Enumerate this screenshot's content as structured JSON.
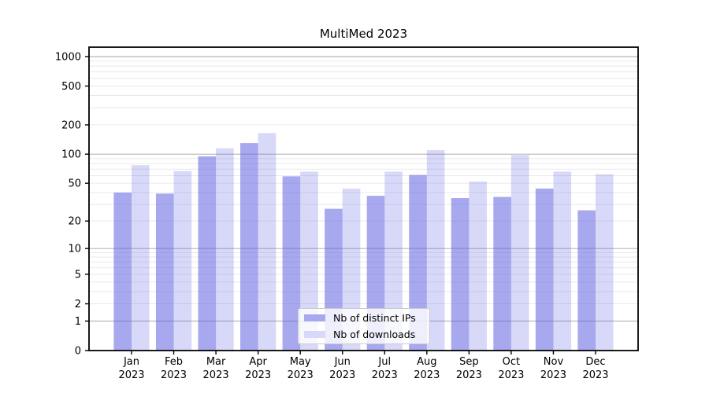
{
  "title": "MultiMed 2023",
  "chart_data": {
    "type": "bar",
    "title": "MultiMed 2023",
    "categories": [
      "Jan",
      "Feb",
      "Mar",
      "Apr",
      "May",
      "Jun",
      "Jul",
      "Aug",
      "Sep",
      "Oct",
      "Nov",
      "Dec"
    ],
    "x_tick_second_line": "2023",
    "series": [
      {
        "name": "Nb of distinct IPs",
        "values": [
          40,
          39,
          95,
          130,
          59,
          27,
          37,
          61,
          35,
          36,
          44,
          26
        ],
        "color": "#6060e2",
        "opacity": 0.55,
        "legend_swatch": "#a8a8ef"
      },
      {
        "name": "Nb of downloads",
        "values": [
          77,
          67,
          115,
          165,
          66,
          44,
          66,
          110,
          52,
          98,
          66,
          62
        ],
        "color": "#6060e2",
        "opacity": 0.245,
        "legend_swatch": "#d8d8f8"
      }
    ],
    "yscale": "log1p",
    "ylim": [
      0,
      1000
    ],
    "y_ticks": [
      0,
      1,
      2,
      5,
      10,
      20,
      50,
      100,
      200,
      500,
      1000
    ],
    "grid": {
      "major_ticks": [
        1,
        10,
        100,
        1000
      ],
      "major_color": "#b8b8b8",
      "minor_color": "#e9e9e9"
    },
    "legend": {
      "location": "lower center"
    },
    "axis_color": "#000000",
    "background": "#ffffff"
  }
}
